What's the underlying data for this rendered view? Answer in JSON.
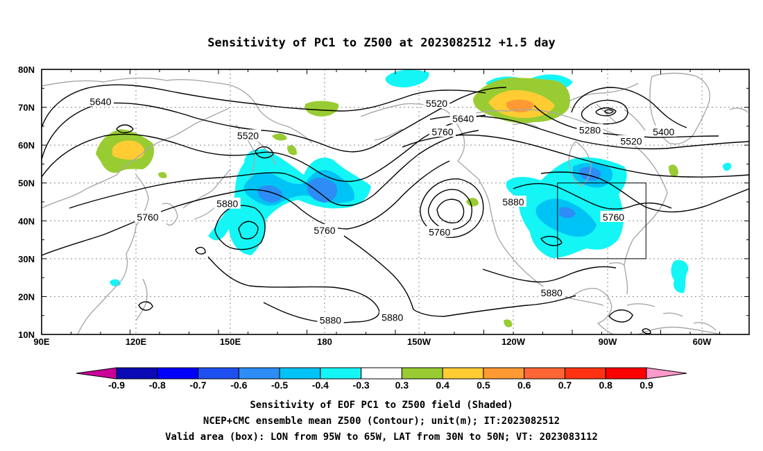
{
  "title": "Sensitivity of PC1 to Z500 at 2023082512 +1.5 day",
  "map": {
    "lon_ticks": [
      "90E",
      "120E",
      "150E",
      "180",
      "150W",
      "120W",
      "90W",
      "60W"
    ],
    "lat_ticks": [
      "80N",
      "70N",
      "60N",
      "50N",
      "40N",
      "30N",
      "20N",
      "10N"
    ],
    "contour_labels": [
      {
        "text": "5640",
        "lon": 110,
        "lat": 71.5
      },
      {
        "text": "5520",
        "lon": 160,
        "lat": 62.5
      },
      {
        "text": "5520",
        "lon": 224,
        "lat": 71
      },
      {
        "text": "5640",
        "lon": 233,
        "lat": 67
      },
      {
        "text": "5760",
        "lon": 226,
        "lat": 63.5
      },
      {
        "text": "5280",
        "lon": 276,
        "lat": 64
      },
      {
        "text": "5400",
        "lon": 301,
        "lat": 63.5
      },
      {
        "text": "5520",
        "lon": 290,
        "lat": 61
      },
      {
        "text": "5880",
        "lon": 153,
        "lat": 44.5
      },
      {
        "text": "5760",
        "lon": 126,
        "lat": 41
      },
      {
        "text": "5760",
        "lon": 186,
        "lat": 37.5
      },
      {
        "text": "5760",
        "lon": 225,
        "lat": 37
      },
      {
        "text": "5880",
        "lon": 250,
        "lat": 45
      },
      {
        "text": "5760",
        "lon": 284,
        "lat": 41
      },
      {
        "text": "5880",
        "lon": 263,
        "lat": 21
      },
      {
        "text": "5880",
        "lon": 188,
        "lat": 13.8
      },
      {
        "text": "5880",
        "lon": 209,
        "lat": 14.5
      }
    ],
    "valid_box": {
      "lon_min": 265,
      "lon_max": 295,
      "lat_min": 30,
      "lat_max": 50
    },
    "colors": {
      "coast": "#a8a8a8",
      "contour": "#000000",
      "grid": "#888888"
    }
  },
  "colorbar": {
    "labels": [
      "-0.9",
      "-0.8",
      "-0.7",
      "-0.6",
      "-0.5",
      "-0.4",
      "-0.3",
      "0.3",
      "0.4",
      "0.5",
      "0.6",
      "0.7",
      "0.8",
      "0.9"
    ],
    "colors": [
      "#cc0099",
      "#0a0ab4",
      "#0000ff",
      "#1e50f0",
      "#2d8cf5",
      "#00c3f5",
      "#14f5f5",
      "#ffffff",
      "#99cc33",
      "#ffcc33",
      "#ff9933",
      "#ff6633",
      "#ff3311",
      "#ff0000",
      "#ff99cc"
    ]
  },
  "footer": {
    "line1": "Sensitivity of EOF PC1 to Z500 field (Shaded)",
    "line2": "NCEP+CMC ensemble mean Z500 (Contour); unit(m); IT:2023082512",
    "line3": "Valid area (box): LON from 95W to 65W, LAT from 30N to 50N; VT: 2023083112"
  }
}
